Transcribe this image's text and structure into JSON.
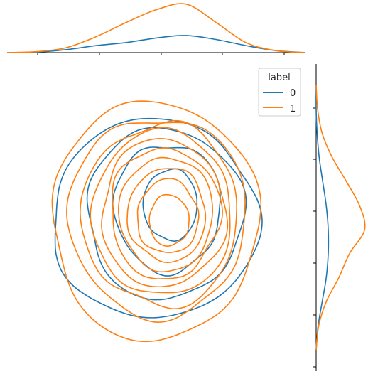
{
  "chart_data": {
    "type": "kde-joint",
    "legend": {
      "title": "label",
      "placement": "top-right",
      "entries": [
        {
          "name": "0",
          "color": "#1f77b4"
        },
        {
          "name": "1",
          "color": "#ff7f0e"
        }
      ]
    },
    "grid": false,
    "top_marginal": {
      "series": [
        {
          "name": "0",
          "color": "#1f77b4",
          "x": [
            0.0,
            0.5,
            1.0,
            1.5,
            2.0,
            2.5,
            3.0,
            3.5,
            4.0,
            4.5,
            5.0
          ],
          "density": [
            0.0,
            0.01,
            0.06,
            0.14,
            0.2,
            0.29,
            0.34,
            0.26,
            0.14,
            0.04,
            0.0
          ]
        },
        {
          "name": "1",
          "color": "#ff7f0e",
          "x": [
            0.0,
            0.5,
            1.0,
            1.5,
            2.0,
            2.5,
            3.0,
            3.5,
            4.0,
            4.5,
            5.0
          ],
          "density": [
            0.0,
            0.02,
            0.1,
            0.32,
            0.6,
            0.85,
            0.96,
            0.6,
            0.2,
            0.04,
            0.0
          ]
        }
      ]
    },
    "right_marginal": {
      "series": [
        {
          "name": "0",
          "color": "#1f77b4",
          "y": [
            0.0,
            0.5,
            1.0,
            1.5,
            2.0,
            2.5,
            3.0,
            3.5,
            4.0,
            4.5,
            5.0,
            5.5
          ],
          "density": [
            0.0,
            0.04,
            0.12,
            0.2,
            0.24,
            0.24,
            0.2,
            0.13,
            0.06,
            0.02,
            0.0,
            0.0
          ]
        },
        {
          "name": "1",
          "color": "#ff7f0e",
          "y": [
            0.0,
            0.5,
            1.0,
            1.5,
            2.0,
            2.5,
            3.0,
            3.5,
            4.0,
            4.5,
            5.0,
            5.5
          ],
          "density": [
            0.0,
            0.05,
            0.2,
            0.45,
            0.66,
            0.96,
            0.86,
            0.6,
            0.32,
            0.12,
            0.03,
            0.0
          ]
        }
      ]
    },
    "joint": {
      "series": [
        {
          "name": "0",
          "color": "#1f77b4",
          "levels": 4
        },
        {
          "name": "1",
          "color": "#ff7f0e",
          "levels": 10
        }
      ]
    }
  }
}
